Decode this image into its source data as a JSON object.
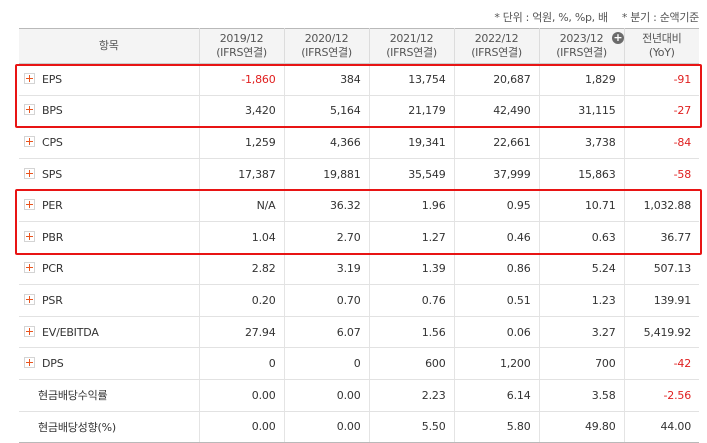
{
  "notes": {
    "unit": "* 단위 : 억원, %, %p, 배",
    "period": "* 분기 : 순액기준"
  },
  "header": {
    "item": "항목",
    "years": [
      {
        "year": "2019/12",
        "basis": "(IFRS연결)"
      },
      {
        "year": "2020/12",
        "basis": "(IFRS연결)"
      },
      {
        "year": "2021/12",
        "basis": "(IFRS연결)"
      },
      {
        "year": "2022/12",
        "basis": "(IFRS연결)"
      },
      {
        "year": "2023/12",
        "basis": "(IFRS연결)"
      }
    ],
    "yoy": "전년대비",
    "yoy_sub": "(YoY)",
    "expand_icon": "+"
  },
  "rows": [
    {
      "label": "EPS",
      "expandable": true,
      "values": [
        "-1,860",
        "384",
        "13,754",
        "20,687",
        "1,829",
        "-91"
      ]
    },
    {
      "label": "BPS",
      "expandable": true,
      "values": [
        "3,420",
        "5,164",
        "21,179",
        "42,490",
        "31,115",
        "-27"
      ]
    },
    {
      "label": "CPS",
      "expandable": true,
      "values": [
        "1,259",
        "4,366",
        "19,341",
        "22,661",
        "3,738",
        "-84"
      ]
    },
    {
      "label": "SPS",
      "expandable": true,
      "values": [
        "17,387",
        "19,881",
        "35,549",
        "37,999",
        "15,863",
        "-58"
      ]
    },
    {
      "label": "PER",
      "expandable": true,
      "values": [
        "N/A",
        "36.32",
        "1.96",
        "0.95",
        "10.71",
        "1,032.88"
      ]
    },
    {
      "label": "PBR",
      "expandable": true,
      "values": [
        "1.04",
        "2.70",
        "1.27",
        "0.46",
        "0.63",
        "36.77"
      ]
    },
    {
      "label": "PCR",
      "expandable": true,
      "values": [
        "2.82",
        "3.19",
        "1.39",
        "0.86",
        "5.24",
        "507.13"
      ]
    },
    {
      "label": "PSR",
      "expandable": true,
      "values": [
        "0.20",
        "0.70",
        "0.76",
        "0.51",
        "1.23",
        "139.91"
      ]
    },
    {
      "label": "EV/EBITDA",
      "expandable": true,
      "values": [
        "27.94",
        "6.07",
        "1.56",
        "0.06",
        "3.27",
        "5,419.92"
      ]
    },
    {
      "label": "DPS",
      "expandable": true,
      "values": [
        "0",
        "0",
        "600",
        "1,200",
        "700",
        "-42"
      ]
    },
    {
      "label": "현금배당수익률",
      "expandable": false,
      "values": [
        "0.00",
        "0.00",
        "2.23",
        "6.14",
        "3.58",
        "-2.56"
      ]
    },
    {
      "label": "현금배당성향(%)",
      "expandable": false,
      "values": [
        "0.00",
        "0.00",
        "5.50",
        "5.80",
        "49.80",
        "44.00"
      ]
    }
  ],
  "colors": {
    "negative": "#e02020",
    "highlight": "#e81414",
    "expand_plus": "#e8541e",
    "header_bg": "#f4f4f4"
  },
  "highlighted_rows": [
    [
      "EPS",
      "BPS"
    ],
    [
      "PER",
      "PBR"
    ]
  ]
}
